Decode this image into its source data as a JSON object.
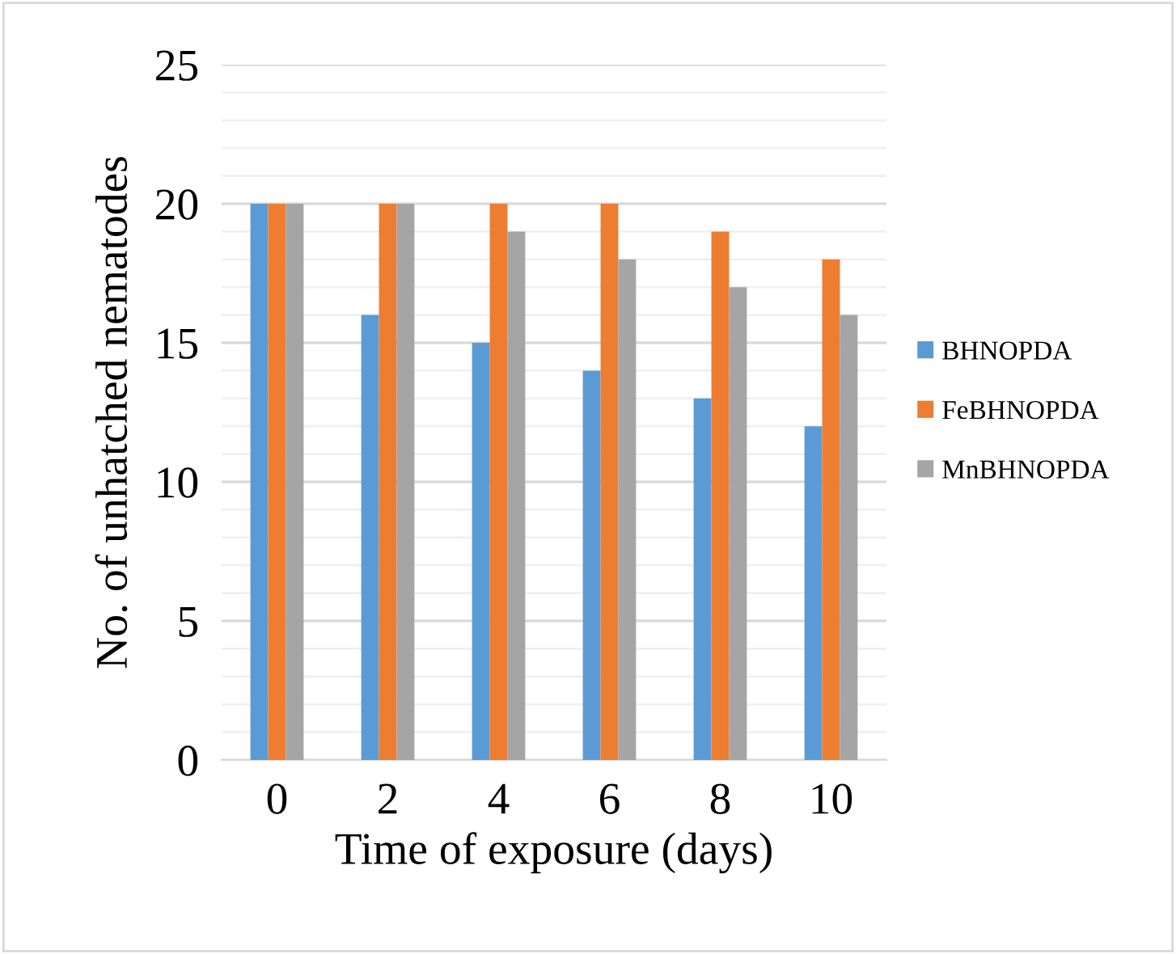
{
  "chart_data": {
    "type": "bar",
    "xlabel": "Time of exposure (days)",
    "ylabel": "No. of unhatched nematodes",
    "categories": [
      "0",
      "2",
      "4",
      "6",
      "8",
      "10"
    ],
    "series": [
      {
        "name": "BHNOPDA",
        "color": "#5b9bd5",
        "values": [
          20,
          16,
          15,
          14,
          13,
          12
        ]
      },
      {
        "name": "FeBHNOPDA",
        "color": "#ed7d31",
        "values": [
          20,
          20,
          20,
          20,
          19,
          18
        ]
      },
      {
        "name": "MnBHNOPDA",
        "color": "#a5a5a5",
        "values": [
          20,
          20,
          19,
          18,
          17,
          16
        ]
      }
    ],
    "ylim": [
      0,
      25
    ],
    "yticks": [
      0,
      5,
      10,
      15,
      20,
      25
    ],
    "grid": "y",
    "legend": "right"
  }
}
